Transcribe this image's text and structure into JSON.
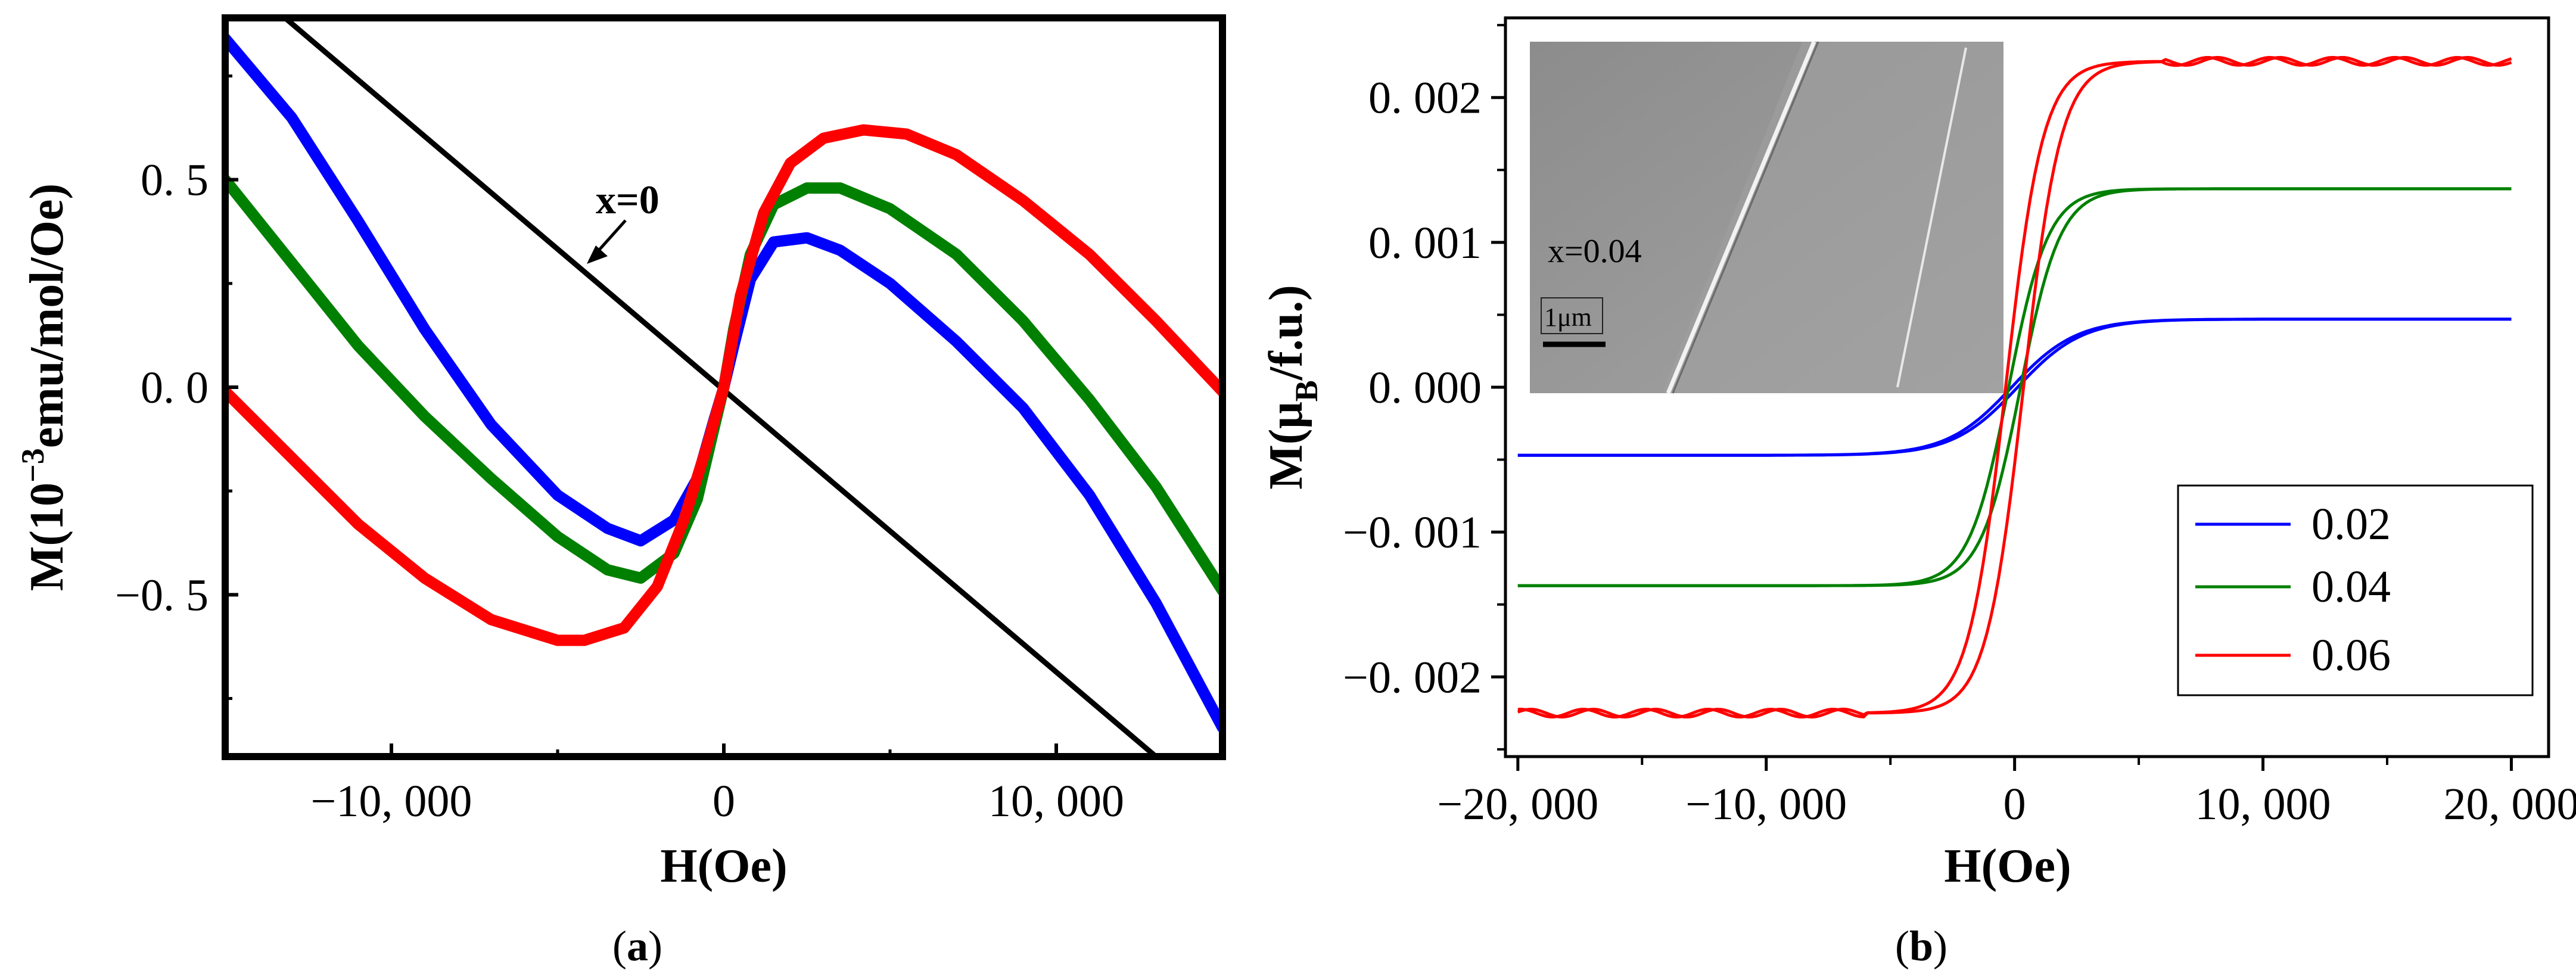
{
  "figure_labels": {
    "a_prefix": "(",
    "a_letter": "a",
    "a_suffix": ")",
    "b_prefix": "(",
    "b_letter": "b",
    "b_suffix": ")"
  },
  "chart_data": [
    {
      "id": "a",
      "type": "line",
      "title": "",
      "xlabel": "H(Oe)",
      "ylabel_parts": {
        "pre": "M(10",
        "sup": "−3",
        "post": "emu/mol/Oe)"
      },
      "xlim": [
        -15000,
        15000
      ],
      "ylim": [
        -0.89,
        0.89
      ],
      "grid": false,
      "xticks": [
        {
          "value": -10000,
          "label": "−10, 000"
        },
        {
          "value": 0,
          "label": "0"
        },
        {
          "value": 10000,
          "label": "10, 000"
        }
      ],
      "yticks": [
        {
          "value": 0.5,
          "label": "0. 5"
        },
        {
          "value": 0.0,
          "label": "0. 0"
        },
        {
          "value": -0.5,
          "label": "−0. 5"
        }
      ],
      "annotation": {
        "text": "x=0",
        "target_x": -4200,
        "target_y": 0.27
      },
      "series": [
        {
          "name": "x=0",
          "color": "#000000",
          "x": [
            -13200,
            13000
          ],
          "y": [
            0.89,
            -0.89
          ]
        },
        {
          "name": "blue",
          "color": "#0000ff",
          "x": [
            -15000,
            -13000,
            -11000,
            -9000,
            -7000,
            -5000,
            -3500,
            -2500,
            -1500,
            -800,
            -300,
            0,
            300,
            800,
            1500,
            2500,
            3500,
            5000,
            7000,
            9000,
            11000,
            13000,
            15000
          ],
          "y": [
            0.84,
            0.65,
            0.4,
            0.14,
            -0.09,
            -0.26,
            -0.34,
            -0.37,
            -0.32,
            -0.22,
            -0.08,
            0.0,
            0.1,
            0.26,
            0.35,
            0.36,
            0.33,
            0.25,
            0.11,
            -0.05,
            -0.26,
            -0.52,
            -0.82
          ]
        },
        {
          "name": "green",
          "color": "#008000",
          "x": [
            -15000,
            -13000,
            -11000,
            -9000,
            -7000,
            -5000,
            -3500,
            -2500,
            -1500,
            -800,
            -300,
            0,
            300,
            800,
            1500,
            2500,
            3500,
            5000,
            7000,
            9000,
            11000,
            13000,
            15000
          ],
          "y": [
            0.5,
            0.3,
            0.1,
            -0.07,
            -0.22,
            -0.36,
            -0.44,
            -0.46,
            -0.4,
            -0.27,
            -0.1,
            0.0,
            0.14,
            0.32,
            0.44,
            0.48,
            0.48,
            0.43,
            0.32,
            0.16,
            -0.03,
            -0.24,
            -0.49
          ]
        },
        {
          "name": "red",
          "color": "#ff0000",
          "x": [
            -15000,
            -13000,
            -11000,
            -9000,
            -7000,
            -5000,
            -4200,
            -3000,
            -2000,
            -1200,
            -500,
            0,
            500,
            1200,
            2000,
            3000,
            4200,
            5500,
            7000,
            9000,
            11000,
            13000,
            15000
          ],
          "y": [
            -0.01,
            -0.17,
            -0.33,
            -0.46,
            -0.56,
            -0.61,
            -0.61,
            -0.58,
            -0.48,
            -0.32,
            -0.14,
            0.0,
            0.22,
            0.42,
            0.54,
            0.6,
            0.62,
            0.61,
            0.56,
            0.45,
            0.32,
            0.16,
            -0.01
          ]
        }
      ]
    },
    {
      "id": "b",
      "type": "line",
      "title": "",
      "xlabel": "H(Oe)",
      "ylabel_parts": {
        "pre": "M(μ",
        "sub": "B",
        "post": "/f.u.)"
      },
      "xlim": [
        -20500,
        21500
      ],
      "ylim": [
        -0.00255,
        0.00255
      ],
      "grid": false,
      "xticks": [
        {
          "value": -20000,
          "label": "−20, 000"
        },
        {
          "value": -10000,
          "label": "−10, 000"
        },
        {
          "value": 0,
          "label": "0"
        },
        {
          "value": 10000,
          "label": "10, 000"
        },
        {
          "value": 20000,
          "label": "20, 000"
        }
      ],
      "yticks": [
        {
          "value": 0.002,
          "label": "0. 002"
        },
        {
          "value": 0.001,
          "label": "0. 001"
        },
        {
          "value": 0.0,
          "label": "0. 000"
        },
        {
          "value": -0.001,
          "label": "−0. 001"
        },
        {
          "value": -0.002,
          "label": "−0. 002"
        }
      ],
      "legend_position": "bottom-right",
      "series": [
        {
          "name": "0.02",
          "color": "#0000ff",
          "saturation": 0.00047,
          "scale": 2600
        },
        {
          "name": "0.04",
          "color": "#008000",
          "saturation": 0.00137,
          "scale": 1600
        },
        {
          "name": "0.06",
          "color": "#ff0000",
          "saturation": 0.00225,
          "scale": 1500
        }
      ],
      "inset": {
        "label": "x=0.04",
        "scale_label": "1μm"
      }
    }
  ]
}
